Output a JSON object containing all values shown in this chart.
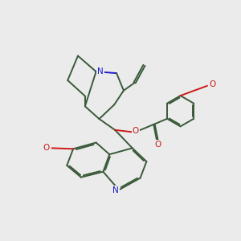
{
  "bg_color": "#ebebeb",
  "bond_color": "#3a5a3a",
  "N_color": "#1a1acc",
  "O_color": "#cc1a1a",
  "lw": 1.4,
  "inner_off": 0.055,
  "fig_w": 3.0,
  "fig_h": 3.0,
  "dpi": 100,
  "xlim": [
    0,
    10
  ],
  "ylim": [
    0,
    10
  ]
}
